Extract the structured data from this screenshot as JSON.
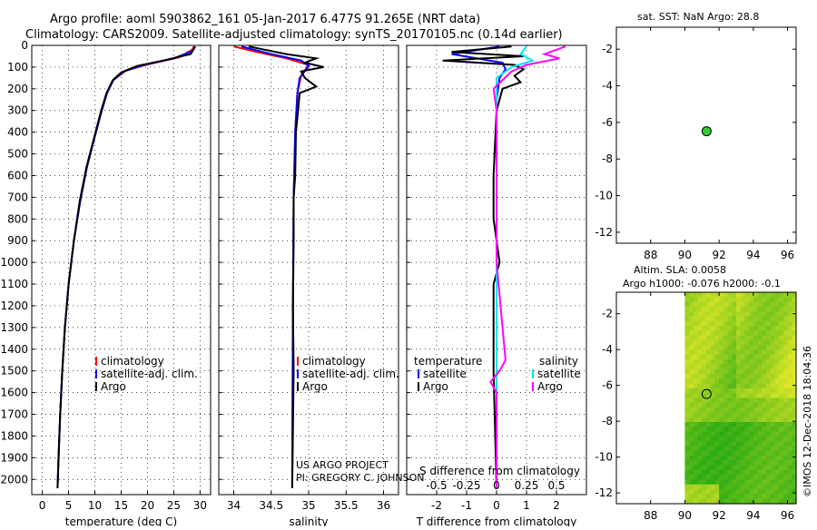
{
  "header": {
    "title_line1": "Argo profile: aoml 5903862_161 05-Jan-2017 6.477S 91.265E (NRT data)",
    "title_line2": "Climatology: CARS2009. Satellite-adjusted climatology: synTS_20170105.nc (0.14d earlier)"
  },
  "colors": {
    "climatology": "#ff0000",
    "satellite": "#0000ff",
    "argo": "#000000",
    "sat_salinity": "#00e5ee",
    "argo_salinity": "#ff00ff",
    "dot": "#33cc33"
  },
  "credits": {
    "line1": "US ARGO PROJECT",
    "line2": "PI: GREGORY C. JOHNSON",
    "timestamp": "©IMOS 12-Dec-2018 18:04:36"
  },
  "chart_data": [
    {
      "id": "temperature",
      "type": "line",
      "xlabel": "temperature (deg C)",
      "xlim": [
        -2,
        32
      ],
      "ylim": [
        2070,
        0
      ],
      "xticks": [
        0,
        5,
        10,
        15,
        20,
        25,
        30
      ],
      "xtick_labels": [
        "0",
        "5",
        "10",
        "15",
        "20",
        "25",
        "30"
      ],
      "yticks": [
        0,
        100,
        200,
        300,
        400,
        500,
        600,
        700,
        800,
        900,
        1000,
        1100,
        1200,
        1300,
        1400,
        1500,
        1600,
        1700,
        1800,
        1900,
        2000
      ],
      "ytick_labels": [
        "0",
        "100",
        "200",
        "300",
        "400",
        "500",
        "600",
        "700",
        "800",
        "900",
        "1000",
        "1100",
        "1200",
        "1300",
        "1400",
        "1500",
        "1600",
        "1700",
        "1800",
        "1900",
        "2000"
      ],
      "legend": [
        "climatology",
        "satellite-adj. clim.",
        "Argo"
      ],
      "series": [
        {
          "name": "climatology",
          "color": "#ff0000",
          "points": [
            [
              28.8,
              5
            ],
            [
              28.5,
              20
            ],
            [
              26,
              55
            ],
            [
              20,
              88
            ],
            [
              16,
              115
            ],
            [
              13.5,
              160
            ],
            [
              12.3,
              220
            ],
            [
              11.3,
              300
            ],
            [
              10,
              420
            ],
            [
              8.5,
              560
            ],
            [
              7.2,
              720
            ],
            [
              6,
              900
            ],
            [
              5,
              1100
            ],
            [
              4.3,
              1300
            ],
            [
              3.8,
              1500
            ],
            [
              3.4,
              1700
            ],
            [
              3.1,
              1900
            ],
            [
              2.9,
              2040
            ]
          ]
        },
        {
          "name": "satellite-adj. clim.",
          "color": "#0000ff",
          "points": [
            [
              29,
              5
            ],
            [
              28.6,
              25
            ],
            [
              25,
              60
            ],
            [
              19,
              92
            ],
            [
              15.5,
              120
            ],
            [
              13.5,
              160
            ],
            [
              12.3,
              220
            ],
            [
              11.3,
              300
            ],
            [
              10,
              420
            ],
            [
              8.5,
              560
            ],
            [
              7.2,
              720
            ],
            [
              6,
              900
            ],
            [
              5,
              1100
            ],
            [
              4.3,
              1300
            ],
            [
              3.8,
              1500
            ],
            [
              3.4,
              1700
            ],
            [
              3.1,
              1900
            ],
            [
              2.9,
              2040
            ]
          ]
        },
        {
          "name": "Argo",
          "color": "#000000",
          "points": [
            [
              29.1,
              5
            ],
            [
              28.2,
              40
            ],
            [
              23,
              70
            ],
            [
              18,
              95
            ],
            [
              15,
              125
            ],
            [
              13.4,
              160
            ],
            [
              12.2,
              220
            ],
            [
              11.2,
              300
            ],
            [
              9.9,
              420
            ],
            [
              8.4,
              560
            ],
            [
              7.1,
              720
            ],
            [
              6,
              900
            ],
            [
              5,
              1100
            ],
            [
              4.3,
              1300
            ],
            [
              3.8,
              1500
            ],
            [
              3.4,
              1700
            ],
            [
              3.1,
              1900
            ],
            [
              2.9,
              2040
            ]
          ]
        }
      ]
    },
    {
      "id": "salinity",
      "type": "line",
      "xlabel": "salinity",
      "xlim": [
        33.8,
        36.2
      ],
      "ylim": [
        2070,
        0
      ],
      "xticks": [
        34,
        34.5,
        35,
        35.5,
        36
      ],
      "xtick_labels": [
        "34",
        "34.5",
        "35",
        "35.5",
        "36"
      ],
      "legend": [
        "climatology",
        "satellite-adj. clim.",
        "Argo"
      ],
      "series": [
        {
          "name": "climatology",
          "color": "#ff0000",
          "points": [
            [
              34.0,
              5
            ],
            [
              34.3,
              30
            ],
            [
              34.7,
              60
            ],
            [
              35.0,
              90
            ],
            [
              34.9,
              140
            ],
            [
              34.85,
              220
            ],
            [
              34.82,
              400
            ],
            [
              34.8,
              700
            ],
            [
              34.79,
              1200
            ],
            [
              34.78,
              2040
            ]
          ]
        },
        {
          "name": "satellite-adj. clim.",
          "color": "#0000ff",
          "points": [
            [
              34.1,
              5
            ],
            [
              34.5,
              40
            ],
            [
              34.9,
              70
            ],
            [
              35.0,
              95
            ],
            [
              34.88,
              150
            ],
            [
              34.85,
              220
            ],
            [
              34.82,
              400
            ],
            [
              34.8,
              700
            ],
            [
              34.79,
              1200
            ],
            [
              34.78,
              2040
            ]
          ]
        },
        {
          "name": "Argo",
          "color": "#000000",
          "points": [
            [
              34.2,
              5
            ],
            [
              34.7,
              40
            ],
            [
              35.1,
              60
            ],
            [
              34.95,
              80
            ],
            [
              35.2,
              100
            ],
            [
              34.9,
              120
            ],
            [
              34.95,
              150
            ],
            [
              35.1,
              190
            ],
            [
              34.88,
              220
            ],
            [
              34.86,
              300
            ],
            [
              34.83,
              400
            ],
            [
              34.82,
              600
            ],
            [
              34.8,
              700
            ],
            [
              34.8,
              900
            ],
            [
              34.79,
              1200
            ],
            [
              34.8,
              1500
            ],
            [
              34.78,
              2040
            ]
          ]
        }
      ]
    },
    {
      "id": "difference",
      "type": "line",
      "xlabel": "T difference from climatology",
      "xlabel_top": "S difference from climatology",
      "xlim": [
        -3,
        3
      ],
      "ylim": [
        2070,
        0
      ],
      "xticks": [
        -2,
        -1,
        0,
        1,
        2
      ],
      "xtick_labels": [
        "-2",
        "-1",
        "0",
        "1",
        "2"
      ],
      "xticks_top": [
        -0.5,
        -0.25,
        0,
        0.25,
        0.5
      ],
      "xtick_top_labels": [
        "-0.5",
        "-0.25",
        "0",
        "0.25",
        "0.5"
      ],
      "legend_temperature_title": "temperature",
      "legend_salinity_title": "salinity",
      "legend_temperature": [
        "satellite",
        "Argo"
      ],
      "legend_salinity": [
        "satellite",
        "Argo"
      ],
      "series": [
        {
          "name": "T satellite",
          "color": "#0000ff",
          "points": [
            [
              0.1,
              5
            ],
            [
              -1.5,
              40
            ],
            [
              0.2,
              80
            ],
            [
              0.3,
              110
            ],
            [
              0.1,
              150
            ],
            [
              0,
              250
            ],
            [
              0,
              500
            ],
            [
              0,
              1000
            ],
            [
              0,
              2040
            ]
          ]
        },
        {
          "name": "T Argo",
          "color": "#000000",
          "points": [
            [
              0.5,
              5
            ],
            [
              -1.5,
              30
            ],
            [
              0.9,
              50
            ],
            [
              -1.8,
              70
            ],
            [
              0.6,
              90
            ],
            [
              0.9,
              110
            ],
            [
              0.6,
              140
            ],
            [
              0.8,
              170
            ],
            [
              0.2,
              200
            ],
            [
              0,
              300
            ],
            [
              -0.1,
              600
            ],
            [
              -0.1,
              800
            ],
            [
              0.1,
              1000
            ],
            [
              -0.1,
              1100
            ],
            [
              -0.1,
              1200
            ],
            [
              -0.1,
              1500
            ],
            [
              0,
              2040
            ]
          ]
        },
        {
          "name": "S satellite",
          "color": "#00e5ee",
          "points": [
            [
              1.0,
              5
            ],
            [
              0.8,
              40
            ],
            [
              1.2,
              70
            ],
            [
              0.5,
              100
            ],
            [
              0,
              150
            ],
            [
              0,
              300
            ],
            [
              0,
              600
            ],
            [
              0,
              1000
            ],
            [
              0,
              2040
            ]
          ]
        },
        {
          "name": "S Argo",
          "color": "#ff00ff",
          "points": [
            [
              2.3,
              5
            ],
            [
              1.6,
              40
            ],
            [
              2.1,
              60
            ],
            [
              1.0,
              90
            ],
            [
              0.5,
              120
            ],
            [
              -0.1,
              200
            ],
            [
              0,
              300
            ],
            [
              0,
              600
            ],
            [
              0,
              1000
            ],
            [
              0.3,
              1450
            ],
            [
              0.1,
              1500
            ],
            [
              -0.2,
              1550
            ],
            [
              0,
              1600
            ],
            [
              0,
              2040
            ]
          ]
        }
      ]
    },
    {
      "id": "sst_map",
      "type": "scatter",
      "title": "sat. SST: NaN Argo: 28.8",
      "xlim": [
        86,
        96.5
      ],
      "ylim": [
        -12.6,
        -0.8
      ],
      "xticks": [
        88,
        90,
        92,
        94,
        96
      ],
      "xtick_labels": [
        "88",
        "90",
        "92",
        "94",
        "96"
      ],
      "yticks": [
        -2,
        -4,
        -6,
        -8,
        -10,
        -12
      ],
      "ytick_labels": [
        "-2",
        "-4",
        "-6",
        "-8",
        "-10",
        "-12"
      ],
      "points": [
        [
          91.27,
          -6.48
        ]
      ]
    },
    {
      "id": "sla_map",
      "type": "heatmap",
      "title_line1": "Altim. SLA: 0.0058",
      "title_line2": "Argo h1000: -0.076 h2000: -0.1",
      "xlim": [
        86,
        96.5
      ],
      "ylim": [
        -12.6,
        -0.8
      ],
      "xticks": [
        88,
        90,
        92,
        94,
        96
      ],
      "xtick_labels": [
        "88",
        "90",
        "92",
        "94",
        "96"
      ],
      "yticks": [
        -2,
        -4,
        -6,
        -8,
        -10,
        -12
      ],
      "ytick_labels": [
        "-2",
        "-4",
        "-6",
        "-8",
        "-10",
        "-12"
      ],
      "field_extent": {
        "lon": [
          90,
          96.5
        ],
        "lat": [
          -12.6,
          -0.8
        ]
      },
      "points": [
        [
          91.27,
          -6.48
        ]
      ]
    }
  ]
}
